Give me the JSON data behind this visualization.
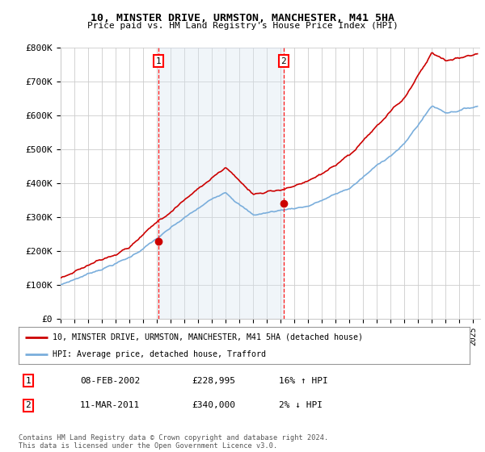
{
  "title": "10, MINSTER DRIVE, URMSTON, MANCHESTER, M41 5HA",
  "subtitle": "Price paid vs. HM Land Registry's House Price Index (HPI)",
  "legend_line1": "10, MINSTER DRIVE, URMSTON, MANCHESTER, M41 5HA (detached house)",
  "legend_line2": "HPI: Average price, detached house, Trafford",
  "annotation1_date": "08-FEB-2002",
  "annotation1_price": "£228,995",
  "annotation1_hpi": "16% ↑ HPI",
  "annotation1_year": 2002.1,
  "annotation1_value": 228995,
  "annotation2_date": "11-MAR-2011",
  "annotation2_price": "£340,000",
  "annotation2_hpi": "2% ↓ HPI",
  "annotation2_year": 2011.2,
  "annotation2_value": 340000,
  "property_color": "#cc0000",
  "hpi_color": "#7aaedc",
  "shade_color": "#d6e4f0",
  "background_color": "#ffffff",
  "plot_bg_color": "#ffffff",
  "ylim": [
    0,
    800000
  ],
  "yticks": [
    0,
    100000,
    200000,
    300000,
    400000,
    500000,
    600000,
    700000,
    800000
  ],
  "ytick_labels": [
    "£0",
    "£100K",
    "£200K",
    "£300K",
    "£400K",
    "£500K",
    "£600K",
    "£700K",
    "£800K"
  ],
  "copyright_text": "Contains HM Land Registry data © Crown copyright and database right 2024.\nThis data is licensed under the Open Government Licence v3.0.",
  "xlim_start": 1995.0,
  "xlim_end": 2025.5
}
